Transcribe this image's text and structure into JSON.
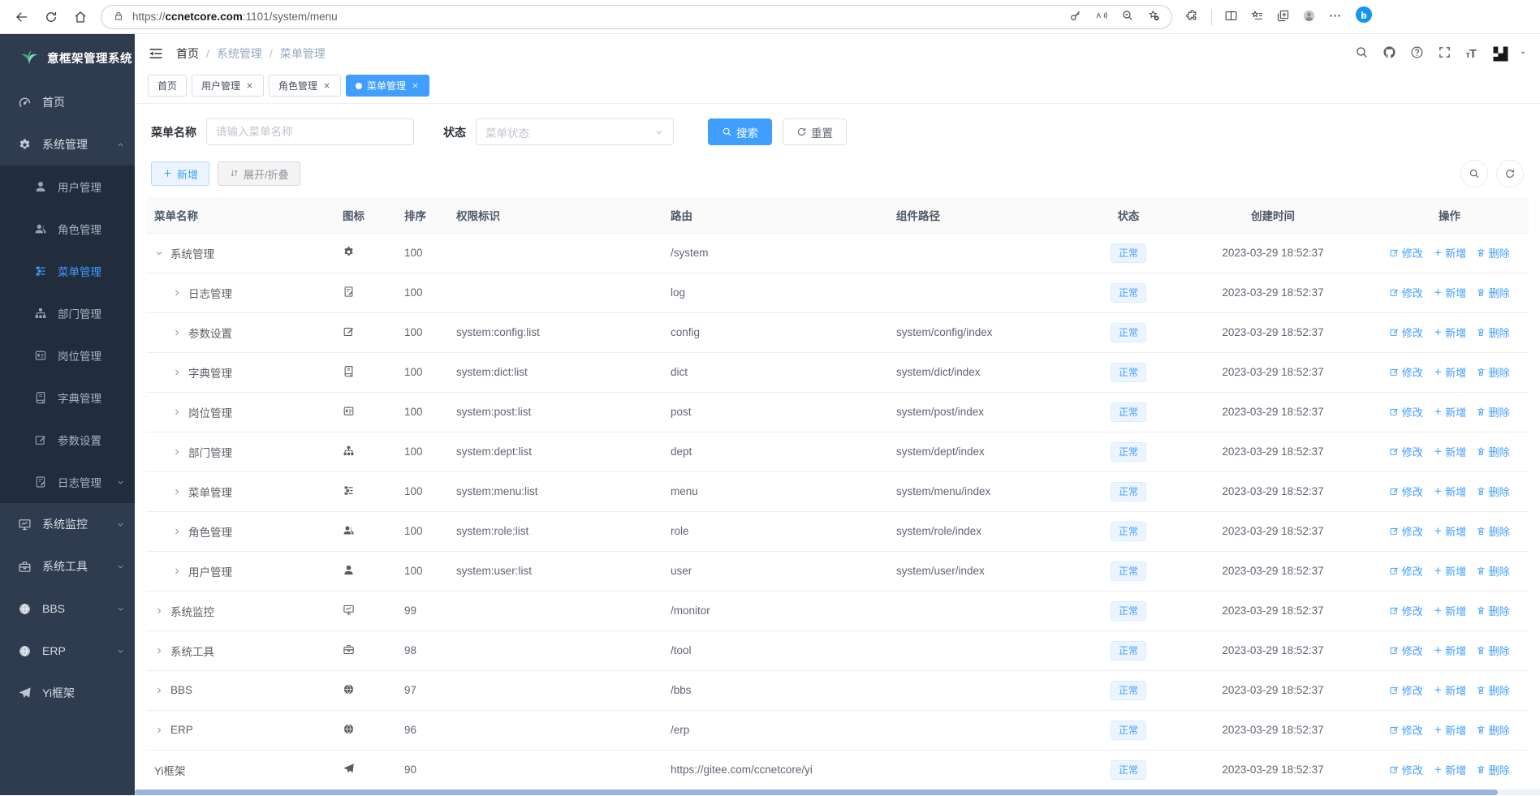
{
  "browser": {
    "url_protocol": "https://",
    "url_domain": "ccnetcore.com",
    "url_path": ":1101/system/menu",
    "left_icons": [
      "back",
      "browser-refresh",
      "home"
    ],
    "pill_icons": [
      "key",
      "read-aloud",
      "zoom-out",
      "star-plus"
    ],
    "right_icons": [
      "essentials",
      "split-screen",
      "favorites",
      "collections",
      "profile",
      "more-dots"
    ]
  },
  "sidebar": {
    "title": "意框架管理系统",
    "logo_icon": "leaf",
    "items": [
      {
        "id": "home",
        "label": "首页",
        "icon": "dashboard",
        "level": 0
      },
      {
        "id": "system-admin",
        "label": "系统管理",
        "icon": "gear",
        "level": 0,
        "chevron": "up",
        "expanded": true
      },
      {
        "id": "user-admin",
        "label": "用户管理",
        "icon": "user",
        "level": 1
      },
      {
        "id": "role-admin",
        "label": "角色管理",
        "icon": "users",
        "level": 1
      },
      {
        "id": "menu-admin",
        "label": "菜单管理",
        "icon": "menu-tree",
        "level": 1,
        "active": true
      },
      {
        "id": "dept-admin",
        "label": "部门管理",
        "icon": "org-tree",
        "level": 1
      },
      {
        "id": "post-admin",
        "label": "岗位管理",
        "icon": "id-card",
        "level": 1
      },
      {
        "id": "dict-admin",
        "label": "字典管理",
        "icon": "book",
        "level": 1
      },
      {
        "id": "config-admin",
        "label": "参数设置",
        "icon": "edit-square",
        "level": 1
      },
      {
        "id": "log-admin",
        "label": "日志管理",
        "icon": "log-doc",
        "level": 1,
        "chevron": "down"
      },
      {
        "id": "monitor",
        "label": "系统监控",
        "icon": "monitor",
        "level": 0,
        "chevron": "down"
      },
      {
        "id": "tools",
        "label": "系统工具",
        "icon": "toolbox",
        "level": 0,
        "chevron": "down"
      },
      {
        "id": "bbs",
        "label": "BBS",
        "icon": "globe",
        "level": 0,
        "chevron": "down"
      },
      {
        "id": "erp",
        "label": "ERP",
        "icon": "globe",
        "level": 0,
        "chevron": "down"
      },
      {
        "id": "yi-framework",
        "label": "Yi框架",
        "icon": "plane",
        "level": 0
      }
    ]
  },
  "navbar": {
    "breadcrumb": [
      "首页",
      "系统管理",
      "菜单管理"
    ],
    "right_icons": [
      "search",
      "github",
      "question",
      "fullscreen"
    ],
    "font_size_icon": "font-size",
    "logo_icon": "yi-logo"
  },
  "tabs": [
    {
      "id": "home",
      "label": "首页",
      "closable": false,
      "active": false
    },
    {
      "id": "user-admin",
      "label": "用户管理",
      "closable": true,
      "active": false
    },
    {
      "id": "role-admin",
      "label": "角色管理",
      "closable": true,
      "active": false
    },
    {
      "id": "menu-admin",
      "label": "菜单管理",
      "closable": true,
      "active": true
    }
  ],
  "filters": {
    "name_label": "菜单名称",
    "name_placeholder": "请输入菜单名称",
    "name_value": "",
    "status_label": "状态",
    "status_placeholder": "菜单状态",
    "search_button": "搜索",
    "reset_button": "重置"
  },
  "toolbar": {
    "add_button": "新增",
    "toggle_button": "展开/折叠",
    "right_icons": [
      "search",
      "refresh"
    ]
  },
  "table": {
    "columns": [
      "菜单名称",
      "图标",
      "排序",
      "权限标识",
      "路由",
      "组件路径",
      "状态",
      "创建时间",
      "操作"
    ],
    "actions": {
      "edit": "修改",
      "add": "新增",
      "delete": "删除"
    },
    "rows": [
      {
        "id": "system",
        "name": "系统管理",
        "icon": "gear",
        "level": 0,
        "arrow": "down",
        "sort": "100",
        "perm": "",
        "route": "/system",
        "component": "",
        "status": "正常",
        "created": "2023-03-29 18:52:37"
      },
      {
        "id": "log",
        "name": "日志管理",
        "icon": "log-doc",
        "level": 1,
        "arrow": "right",
        "sort": "100",
        "perm": "",
        "route": "log",
        "component": "",
        "status": "正常",
        "created": "2023-03-29 18:52:37"
      },
      {
        "id": "config",
        "name": "参数设置",
        "icon": "edit-square",
        "level": 1,
        "arrow": "right",
        "sort": "100",
        "perm": "system:config:list",
        "route": "config",
        "component": "system/config/index",
        "status": "正常",
        "created": "2023-03-29 18:52:37"
      },
      {
        "id": "dict",
        "name": "字典管理",
        "icon": "book",
        "level": 1,
        "arrow": "right",
        "sort": "100",
        "perm": "system:dict:list",
        "route": "dict",
        "component": "system/dict/index",
        "status": "正常",
        "created": "2023-03-29 18:52:37"
      },
      {
        "id": "post",
        "name": "岗位管理",
        "icon": "id-card",
        "level": 1,
        "arrow": "right",
        "sort": "100",
        "perm": "system:post:list",
        "route": "post",
        "component": "system/post/index",
        "status": "正常",
        "created": "2023-03-29 18:52:37"
      },
      {
        "id": "dept",
        "name": "部门管理",
        "icon": "org-tree",
        "level": 1,
        "arrow": "right",
        "sort": "100",
        "perm": "system:dept:list",
        "route": "dept",
        "component": "system/dept/index",
        "status": "正常",
        "created": "2023-03-29 18:52:37"
      },
      {
        "id": "menu",
        "name": "菜单管理",
        "icon": "menu-tree",
        "level": 1,
        "arrow": "right",
        "sort": "100",
        "perm": "system:menu:list",
        "route": "menu",
        "component": "system/menu/index",
        "status": "正常",
        "created": "2023-03-29 18:52:37"
      },
      {
        "id": "role",
        "name": "角色管理",
        "icon": "users",
        "level": 1,
        "arrow": "right",
        "sort": "100",
        "perm": "system:role:list",
        "route": "role",
        "component": "system/role/index",
        "status": "正常",
        "created": "2023-03-29 18:52:37"
      },
      {
        "id": "user",
        "name": "用户管理",
        "icon": "user",
        "level": 1,
        "arrow": "right",
        "sort": "100",
        "perm": "system:user:list",
        "route": "user",
        "component": "system/user/index",
        "status": "正常",
        "created": "2023-03-29 18:52:37"
      },
      {
        "id": "monitor",
        "name": "系统监控",
        "icon": "monitor",
        "level": 0,
        "arrow": "right",
        "sort": "99",
        "perm": "",
        "route": "/monitor",
        "component": "",
        "status": "正常",
        "created": "2023-03-29 18:52:37"
      },
      {
        "id": "tool",
        "name": "系统工具",
        "icon": "toolbox",
        "level": 0,
        "arrow": "right",
        "sort": "98",
        "perm": "",
        "route": "/tool",
        "component": "",
        "status": "正常",
        "created": "2023-03-29 18:52:37"
      },
      {
        "id": "bbs",
        "name": "BBS",
        "icon": "globe",
        "level": 0,
        "arrow": "right",
        "sort": "97",
        "perm": "",
        "route": "/bbs",
        "component": "",
        "status": "正常",
        "created": "2023-03-29 18:52:37"
      },
      {
        "id": "erp",
        "name": "ERP",
        "icon": "globe",
        "level": 0,
        "arrow": "right",
        "sort": "96",
        "perm": "",
        "route": "/erp",
        "component": "",
        "status": "正常",
        "created": "2023-03-29 18:52:37"
      },
      {
        "id": "yi",
        "name": "Yi框架",
        "icon": "plane",
        "level": 0,
        "arrow": "none",
        "sort": "90",
        "perm": "",
        "route": "https://gitee.com/ccnetcore/yi",
        "component": "",
        "status": "正常",
        "created": "2023-03-29 18:52:37"
      }
    ]
  },
  "colors": {
    "accent": "#409eff",
    "sidebar_bg": "#2f3c4f",
    "submenu_bg": "#212c3c",
    "badge_bg": "#ecf5ff",
    "badge_border": "#d9ecff",
    "logo_green": "#54c294"
  }
}
